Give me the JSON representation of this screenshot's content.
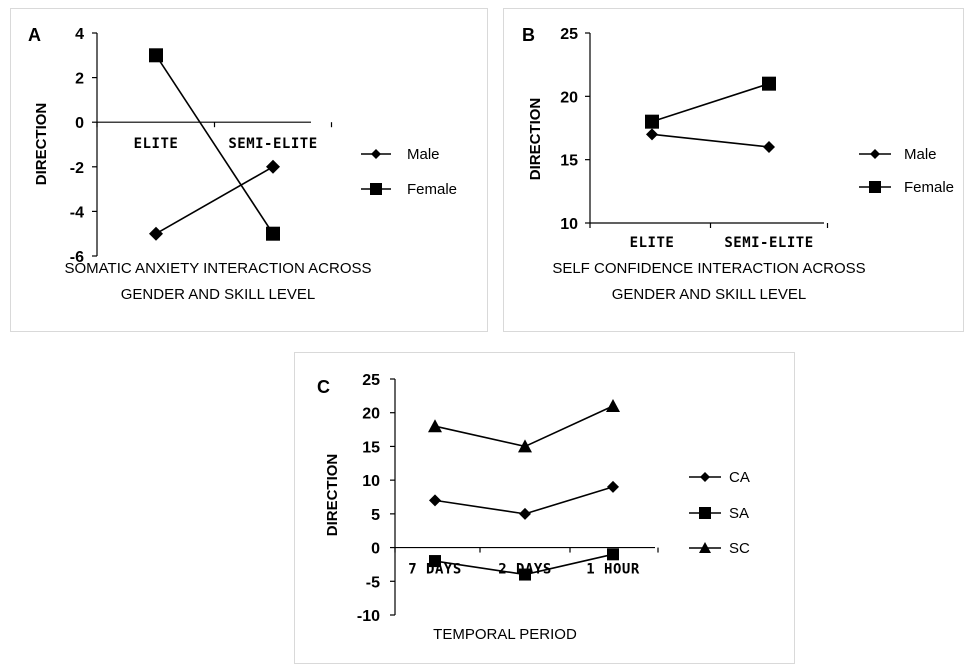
{
  "chart_data": [
    {
      "panel_label": "A",
      "type": "line",
      "categories": [
        "ELITE",
        "SEMI-ELITE"
      ],
      "series": [
        {
          "name": "Male",
          "marker": "diamond",
          "values": [
            -5,
            -2
          ]
        },
        {
          "name": "Female",
          "marker": "square",
          "values": [
            3,
            -5
          ]
        }
      ],
      "ylabel": "DIRECTION",
      "title_lines": [
        "SOMATIC ANXIETY INTERACTION ACROSS",
        "GENDER AND SKILL LEVEL"
      ],
      "ylim": [
        -6,
        4
      ],
      "yticks": [
        4,
        2,
        0,
        -2,
        -4,
        -6
      ],
      "grid": false,
      "legend": "right"
    },
    {
      "panel_label": "B",
      "type": "line",
      "categories": [
        "ELITE",
        "SEMI-ELITE"
      ],
      "series": [
        {
          "name": "Male",
          "marker": "diamond",
          "values": [
            17,
            16
          ]
        },
        {
          "name": "Female",
          "marker": "square",
          "values": [
            18,
            21
          ]
        }
      ],
      "ylabel": "DIRECTION",
      "title_lines": [
        "SELF CONFIDENCE INTERACTION ACROSS",
        "GENDER AND SKILL LEVEL"
      ],
      "ylim": [
        10,
        25
      ],
      "yticks": [
        25,
        20,
        15,
        10
      ],
      "grid": false,
      "legend": "right"
    },
    {
      "panel_label": "C",
      "type": "line",
      "categories": [
        "7 DAYS",
        "2 DAYS",
        "1 HOUR"
      ],
      "series": [
        {
          "name": "CA",
          "marker": "diamond",
          "values": [
            7,
            5,
            9
          ]
        },
        {
          "name": "SA",
          "marker": "square",
          "values": [
            -2,
            -4,
            -1
          ]
        },
        {
          "name": "SC",
          "marker": "triangle",
          "values": [
            18,
            15,
            21
          ]
        }
      ],
      "ylabel": "DIRECTION",
      "title_lines": [
        "TEMPORAL PERIOD"
      ],
      "ylim": [
        -10,
        25
      ],
      "yticks": [
        25,
        20,
        15,
        10,
        5,
        0,
        -5,
        -10
      ],
      "grid": false,
      "legend": "right"
    }
  ],
  "colors": {
    "line": "#000000",
    "marker": "#000000",
    "axis": "#000000",
    "frame": "#d9d9d9"
  }
}
